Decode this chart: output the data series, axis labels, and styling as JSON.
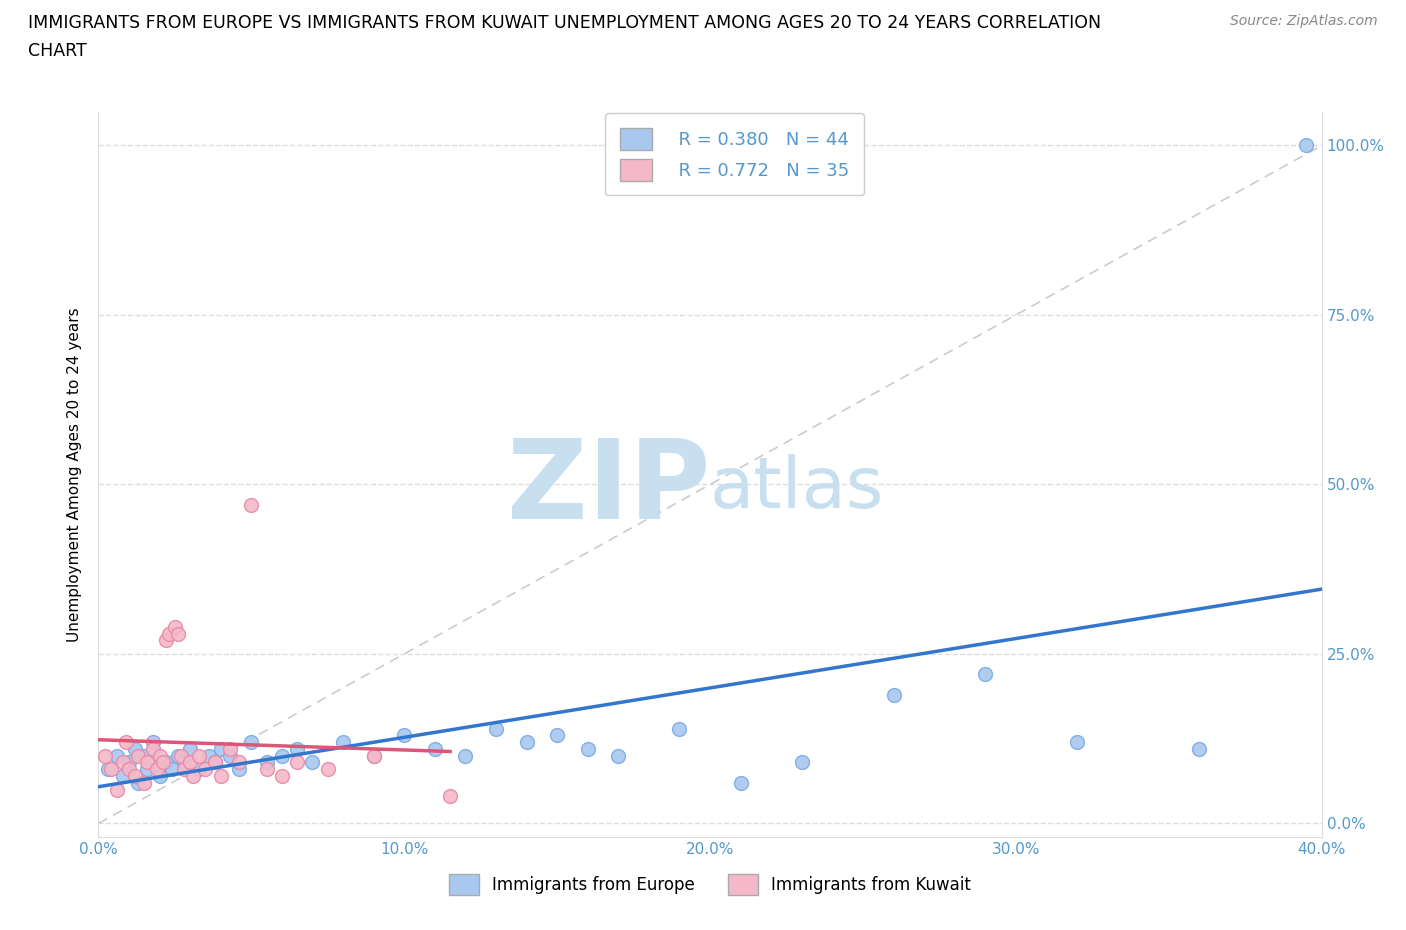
{
  "title_line1": "IMMIGRANTS FROM EUROPE VS IMMIGRANTS FROM KUWAIT UNEMPLOYMENT AMONG AGES 20 TO 24 YEARS CORRELATION",
  "title_line2": "CHART",
  "source": "Source: ZipAtlas.com",
  "ylabel": "Unemployment Among Ages 20 to 24 years",
  "xlabel_ticks": [
    "0.0%",
    "",
    "10.0%",
    "",
    "20.0%",
    "",
    "30.0%",
    "",
    "40.0%"
  ],
  "ylabel_ticks_right": [
    "0.0%",
    "25.0%",
    "50.0%",
    "75.0%",
    "100.0%"
  ],
  "xlim": [
    0.0,
    0.4
  ],
  "ylim": [
    -0.02,
    1.05
  ],
  "yticks": [
    0.0,
    0.25,
    0.5,
    0.75,
    1.0
  ],
  "xticks": [
    0.0,
    0.05,
    0.1,
    0.15,
    0.2,
    0.25,
    0.3,
    0.35,
    0.4
  ],
  "europe_color": "#a8c8f0",
  "europe_edge_color": "#7aabdf",
  "kuwait_color": "#f5b8c8",
  "kuwait_edge_color": "#e888a8",
  "europe_R": 0.38,
  "europe_N": 44,
  "kuwait_R": 0.772,
  "kuwait_N": 35,
  "europe_line_color": "#3377cc",
  "kuwait_line_color": "#dd5577",
  "diagonal_color": "#cccccc",
  "europe_scatter_x": [
    0.003,
    0.006,
    0.008,
    0.01,
    0.012,
    0.013,
    0.015,
    0.016,
    0.018,
    0.02,
    0.022,
    0.024,
    0.026,
    0.028,
    0.03,
    0.033,
    0.036,
    0.038,
    0.04,
    0.043,
    0.046,
    0.05,
    0.055,
    0.06,
    0.065,
    0.07,
    0.08,
    0.09,
    0.1,
    0.11,
    0.12,
    0.13,
    0.14,
    0.15,
    0.16,
    0.17,
    0.19,
    0.21,
    0.23,
    0.26,
    0.29,
    0.32,
    0.36,
    0.395
  ],
  "europe_scatter_y": [
    0.08,
    0.1,
    0.07,
    0.09,
    0.11,
    0.06,
    0.1,
    0.08,
    0.12,
    0.07,
    0.09,
    0.08,
    0.1,
    0.09,
    0.11,
    0.08,
    0.1,
    0.09,
    0.11,
    0.1,
    0.08,
    0.12,
    0.09,
    0.1,
    0.11,
    0.09,
    0.12,
    0.1,
    0.13,
    0.11,
    0.1,
    0.14,
    0.12,
    0.13,
    0.11,
    0.1,
    0.14,
    0.06,
    0.09,
    0.19,
    0.22,
    0.12,
    0.11,
    1.0
  ],
  "kuwait_scatter_x": [
    0.002,
    0.004,
    0.006,
    0.008,
    0.009,
    0.01,
    0.012,
    0.013,
    0.015,
    0.016,
    0.018,
    0.019,
    0.02,
    0.021,
    0.022,
    0.023,
    0.025,
    0.026,
    0.027,
    0.028,
    0.03,
    0.031,
    0.033,
    0.035,
    0.038,
    0.04,
    0.043,
    0.046,
    0.05,
    0.055,
    0.06,
    0.065,
    0.075,
    0.09,
    0.115
  ],
  "kuwait_scatter_y": [
    0.1,
    0.08,
    0.05,
    0.09,
    0.12,
    0.08,
    0.07,
    0.1,
    0.06,
    0.09,
    0.11,
    0.08,
    0.1,
    0.09,
    0.27,
    0.28,
    0.29,
    0.28,
    0.1,
    0.08,
    0.09,
    0.07,
    0.1,
    0.08,
    0.09,
    0.07,
    0.11,
    0.09,
    0.47,
    0.08,
    0.07,
    0.09,
    0.08,
    0.1,
    0.04
  ],
  "watermark_zip_color": "#c8dff0",
  "watermark_atlas_color": "#c8dff0",
  "watermark_fontsize": 80,
  "grid_color": "#dddddd",
  "grid_style": "--",
  "background_color": "#ffffff",
  "title_fontsize": 12.5,
  "legend_fontsize": 13,
  "tick_label_color": "#5599cc",
  "legend_R_color": "#3377cc",
  "legend_N_color": "#333333"
}
